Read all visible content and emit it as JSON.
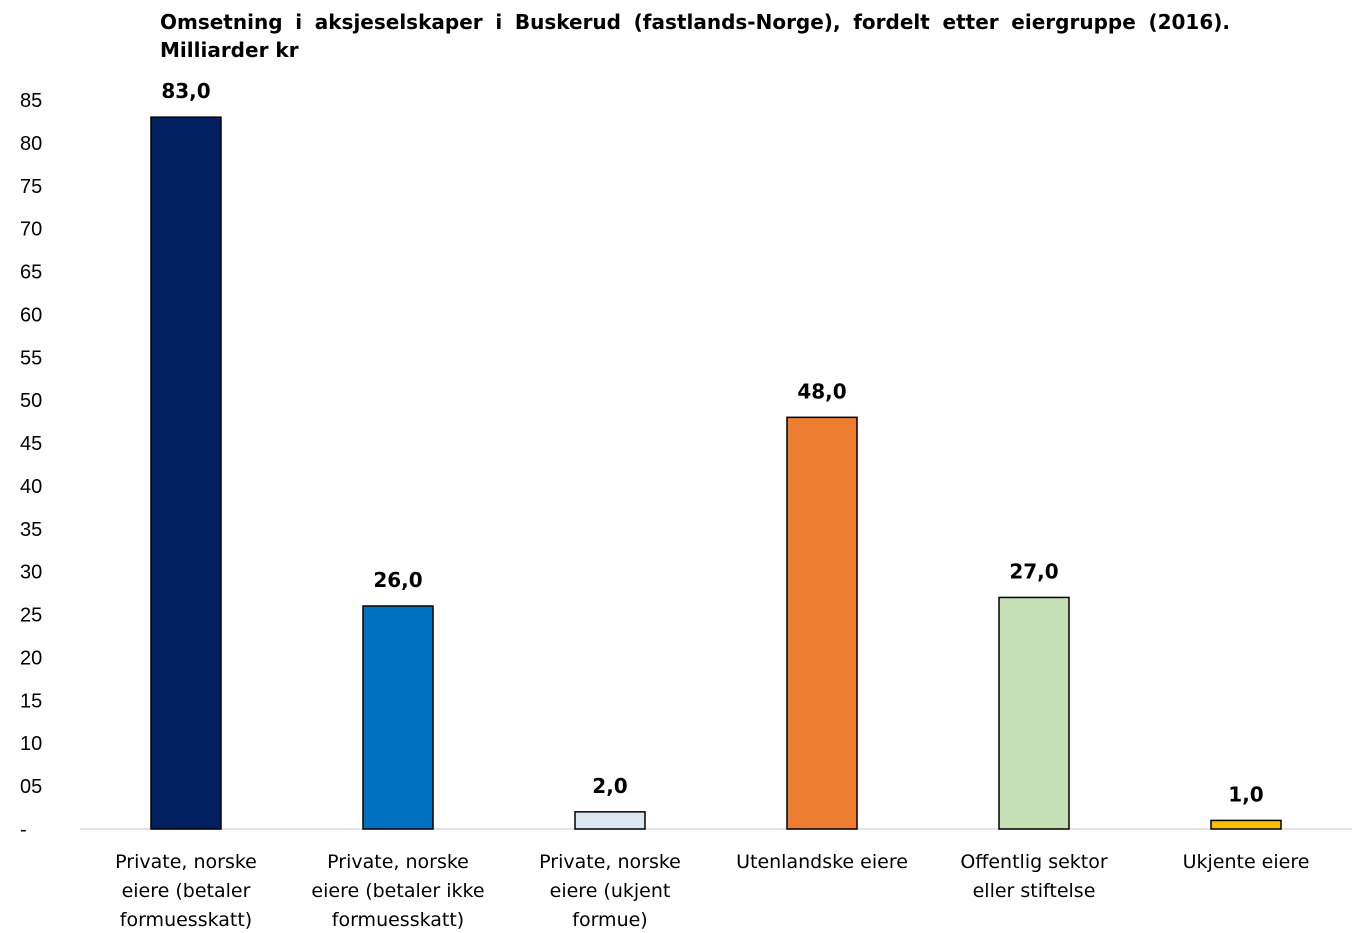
{
  "chart_data": {
    "type": "bar",
    "title": "Omsetning i aksjeselskaper i Buskerud (fastlands-Norge), fordelt etter eiergruppe (2016). Milliarder kr",
    "categories": [
      [
        "Private, norske",
        "eiere (betaler",
        "formuesskatt)"
      ],
      [
        "Private, norske",
        "eiere (betaler ikke",
        "formuesskatt)"
      ],
      [
        "Private, norske",
        "eiere (ukjent",
        "formue)"
      ],
      [
        "Utenlandske eiere"
      ],
      [
        "Offentlig sektor",
        "eller stiftelse"
      ],
      [
        "Ukjente eiere"
      ]
    ],
    "values": [
      83.0,
      26.0,
      2.0,
      48.0,
      27.0,
      1.0
    ],
    "data_labels": [
      "83,0",
      "26,0",
      "2,0",
      "48,0",
      "27,0",
      "1,0"
    ],
    "colors": [
      "#002060",
      "#0070C0",
      "#DCE6F2",
      "#ED7D31",
      "#C5E0B4",
      "#FFC000"
    ],
    "ylim": [
      0,
      85
    ],
    "yticks": [
      {
        "value": 0,
        "label": "-"
      },
      {
        "value": 5,
        "label": "05"
      },
      {
        "value": 10,
        "label": "10"
      },
      {
        "value": 15,
        "label": "15"
      },
      {
        "value": 20,
        "label": "20"
      },
      {
        "value": 25,
        "label": "25"
      },
      {
        "value": 30,
        "label": "30"
      },
      {
        "value": 35,
        "label": "35"
      },
      {
        "value": 40,
        "label": "40"
      },
      {
        "value": 45,
        "label": "45"
      },
      {
        "value": 50,
        "label": "50"
      },
      {
        "value": 55,
        "label": "55"
      },
      {
        "value": 60,
        "label": "60"
      },
      {
        "value": 65,
        "label": "65"
      },
      {
        "value": 70,
        "label": "70"
      },
      {
        "value": 75,
        "label": "75"
      },
      {
        "value": 80,
        "label": "80"
      },
      {
        "value": 85,
        "label": "85"
      }
    ],
    "xlabel": "",
    "ylabel": "",
    "grid": false,
    "legend": "none"
  }
}
